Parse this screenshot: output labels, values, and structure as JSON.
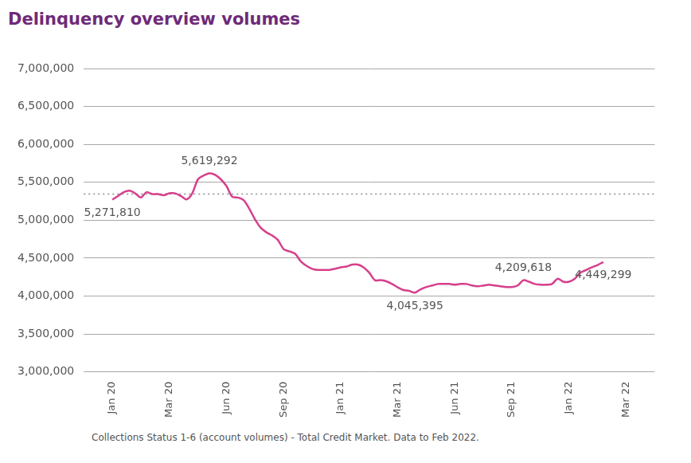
{
  "chart_data": {
    "type": "line",
    "title": "Delinquency overview volumes",
    "footnote": "Collections Status 1-6 (account volumes) - Total Credit Market. Data to Feb 2022.",
    "color": "#d63f8c",
    "grid": true,
    "data_labels": true,
    "reference_value": 5345000,
    "ylim": [
      3000000,
      7000000
    ],
    "yticks": [
      {
        "value": 3000000,
        "label": "3,000,000"
      },
      {
        "value": 3500000,
        "label": "3,500,000"
      },
      {
        "value": 4000000,
        "label": "4,000,000"
      },
      {
        "value": 4500000,
        "label": "4,500,000"
      },
      {
        "value": 5000000,
        "label": "5,000,000"
      },
      {
        "value": 5500000,
        "label": "5,500,000"
      },
      {
        "value": 6000000,
        "label": "6,000,000"
      },
      {
        "value": 6500000,
        "label": "6,500,000"
      },
      {
        "value": 7000000,
        "label": "7,000,000"
      }
    ],
    "categories": [
      null,
      null,
      null,
      null,
      null,
      "Jan 20",
      null,
      null,
      null,
      null,
      null,
      null,
      null,
      null,
      null,
      "Mar 20",
      null,
      null,
      null,
      null,
      null,
      null,
      null,
      null,
      null,
      "Jun 20",
      null,
      null,
      null,
      null,
      null,
      null,
      null,
      null,
      null,
      "Sep 20",
      null,
      null,
      null,
      null,
      null,
      null,
      null,
      null,
      null,
      "Jan 21",
      null,
      null,
      null,
      null,
      null,
      null,
      null,
      null,
      null,
      "Mar 21",
      null,
      null,
      null,
      null,
      null,
      null,
      null,
      null,
      null,
      "Jun 21",
      null,
      null,
      null,
      null,
      null,
      null,
      null,
      null,
      null,
      "Sep 21",
      null,
      null,
      null,
      null,
      null,
      null,
      null,
      null,
      null,
      "Jan 22",
      null,
      null,
      null,
      null,
      null,
      null,
      null,
      null,
      null,
      "Mar 22",
      null,
      null,
      null,
      null,
      null
    ],
    "values": [
      null,
      null,
      null,
      null,
      null,
      5271810,
      5320000,
      5370000,
      5390000,
      5355000,
      5300000,
      5370000,
      5345000,
      5345000,
      5330000,
      5355000,
      5355000,
      5320000,
      5275000,
      5355000,
      5540000,
      5590000,
      5619292,
      5600000,
      5540000,
      5450000,
      5310000,
      5300000,
      5265000,
      5150000,
      5010000,
      4900000,
      4840000,
      4800000,
      4740000,
      4620000,
      4590000,
      4560000,
      4460000,
      4400000,
      4360000,
      4345000,
      4345000,
      4345000,
      4360000,
      4380000,
      4390000,
      4415000,
      4415000,
      4380000,
      4310000,
      4210000,
      4210000,
      4195000,
      4160000,
      4115000,
      4080000,
      4070000,
      4045395,
      4090000,
      4120000,
      4140000,
      4160000,
      4160000,
      4160000,
      4150000,
      4160000,
      4160000,
      4140000,
      4130000,
      4140000,
      4150000,
      4140000,
      4130000,
      4120000,
      4120000,
      4140000,
      4209618,
      4190000,
      4160000,
      4150000,
      4150000,
      4160000,
      4230000,
      4190000,
      4190000,
      4230000,
      4310000,
      4345000,
      4380000,
      4410000,
      4449299,
      null,
      null,
      null,
      null,
      null,
      null,
      null,
      null,
      null
    ],
    "value_labels": [
      null,
      null,
      null,
      null,
      null,
      "5,271,810",
      null,
      null,
      null,
      null,
      null,
      null,
      null,
      null,
      null,
      null,
      null,
      null,
      null,
      null,
      null,
      null,
      "5,619,292",
      null,
      null,
      null,
      null,
      null,
      null,
      null,
      null,
      null,
      null,
      null,
      null,
      null,
      null,
      null,
      null,
      null,
      null,
      null,
      null,
      null,
      null,
      null,
      null,
      null,
      null,
      null,
      null,
      null,
      null,
      null,
      null,
      null,
      null,
      null,
      "4,045,395",
      null,
      null,
      null,
      null,
      null,
      null,
      null,
      null,
      null,
      null,
      null,
      null,
      null,
      null,
      null,
      null,
      null,
      null,
      "4,209,618",
      null,
      null,
      null,
      null,
      null,
      null,
      null,
      null,
      null,
      null,
      null,
      null,
      null,
      "4,449,299",
      null,
      null,
      null,
      null,
      null,
      null,
      null,
      null,
      null
    ]
  }
}
